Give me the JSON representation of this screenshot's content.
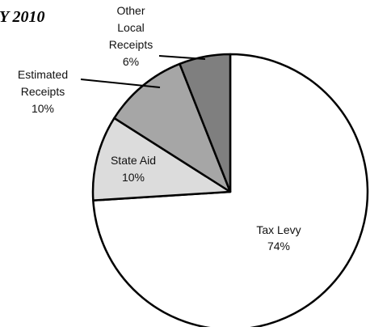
{
  "chart_data": {
    "type": "pie",
    "title": "Y 2010",
    "slices": [
      {
        "key": "tax-levy",
        "label_lines": [
          "Tax Levy",
          "74%"
        ],
        "value": 74,
        "color": "#ffffff"
      },
      {
        "key": "state-aid",
        "label_lines": [
          "State Aid",
          "10%"
        ],
        "value": 10,
        "color": "#dcdcdc"
      },
      {
        "key": "estimated-receipts",
        "label_lines": [
          "Estimated",
          "Receipts",
          "10%"
        ],
        "value": 10,
        "color": "#a6a6a6"
      },
      {
        "key": "other-local-receipts",
        "label_lines": [
          "Other",
          "Local",
          "Receipts",
          "6%"
        ],
        "value": 6,
        "color": "#7f7f7f"
      }
    ],
    "start": "12 o'clock",
    "direction": "clockwise",
    "legend": "none"
  }
}
